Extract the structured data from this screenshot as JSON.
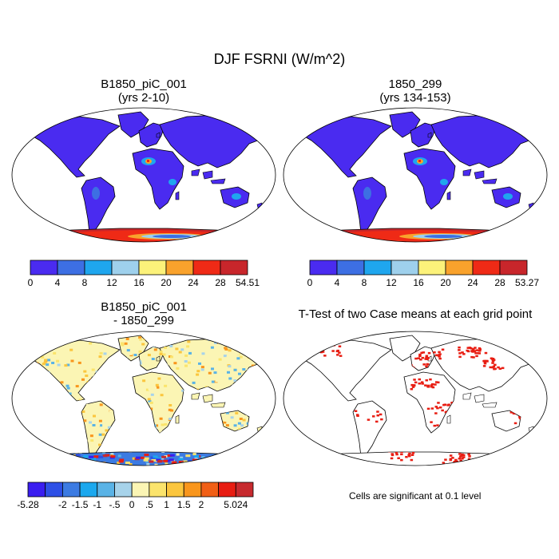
{
  "main_title": "DJF FSRNI (W/m^2)",
  "panels": [
    {
      "title_line1": "B1850_piC_001",
      "title_line2": "(yrs 2-10)"
    },
    {
      "title_line1": "1850_299",
      "title_line2": "(yrs 134-153)"
    },
    {
      "title_line1": "B1850_piC_001",
      "title_line2": "- 1850_299"
    },
    {
      "title_line1": "T-Test of two Case means at each grid point",
      "title_line2": ""
    }
  ],
  "colorbar1": {
    "colors": [
      "#4a2bf0",
      "#3d6fe3",
      "#1fa6ee",
      "#9ed0ec",
      "#fcf27a",
      "#f9a22c",
      "#ef2a16",
      "#c8262b"
    ],
    "labels": [
      "0",
      "4",
      "8",
      "12",
      "16",
      "20",
      "24",
      "28",
      "54.51"
    ]
  },
  "colorbar2": {
    "colors": [
      "#4a2bf0",
      "#3d6fe3",
      "#1fa6ee",
      "#9ed0ec",
      "#fcf27a",
      "#f9a22c",
      "#ef2a16",
      "#c8262b"
    ],
    "labels": [
      "0",
      "4",
      "8",
      "12",
      "16",
      "20",
      "24",
      "28",
      "53.27"
    ]
  },
  "colorbar3": {
    "colors": [
      "#3a1ef0",
      "#2e50e6",
      "#3c7be2",
      "#1ba8ee",
      "#5ab3e6",
      "#a7d3ea",
      "#fbf5b4",
      "#fbe46c",
      "#fbc63e",
      "#f9961c",
      "#f15f16",
      "#e81d12",
      "#c72a2e"
    ],
    "labels": [
      "-5.28",
      "",
      "-2",
      "-1.5",
      "-1",
      "-.5",
      "0",
      ".5",
      "1",
      "1.5",
      "2",
      "",
      "5.024"
    ]
  },
  "significance_note": "Cells are significant at 0.1 level"
}
